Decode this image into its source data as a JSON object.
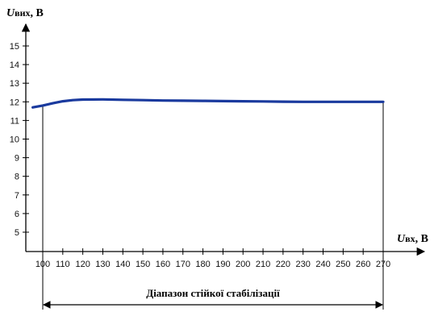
{
  "chart_data": {
    "type": "line",
    "ylabel": {
      "main": "U",
      "sub": "вих",
      "unit": ", В"
    },
    "xlabel": {
      "main": "U",
      "sub": "вх",
      "unit": ", В"
    },
    "xlim": [
      95,
      283
    ],
    "ylim": [
      4,
      16.5
    ],
    "x_ticks": [
      100,
      110,
      120,
      130,
      140,
      150,
      160,
      170,
      180,
      190,
      200,
      210,
      220,
      230,
      240,
      250,
      260,
      270
    ],
    "y_ticks": [
      5,
      6,
      7,
      8,
      9,
      10,
      11,
      12,
      13,
      14,
      15
    ],
    "series": [
      {
        "color": "#1a3a9e",
        "points": [
          [
            95,
            11.7
          ],
          [
            100,
            11.8
          ],
          [
            105,
            11.92
          ],
          [
            110,
            12.03
          ],
          [
            115,
            12.09
          ],
          [
            120,
            12.12
          ],
          [
            130,
            12.13
          ],
          [
            140,
            12.11
          ],
          [
            150,
            12.09
          ],
          [
            160,
            12.07
          ],
          [
            170,
            12.06
          ],
          [
            180,
            12.05
          ],
          [
            190,
            12.04
          ],
          [
            200,
            12.03
          ],
          [
            210,
            12.02
          ],
          [
            220,
            12.01
          ],
          [
            230,
            12.0
          ],
          [
            240,
            12.0
          ],
          [
            250,
            12.0
          ],
          [
            260,
            12.0
          ],
          [
            270,
            12.0
          ]
        ]
      }
    ],
    "range_annotation": {
      "label": "Діапазон стійкої стабілізації",
      "from": 100,
      "to": 270
    },
    "grid": false
  }
}
